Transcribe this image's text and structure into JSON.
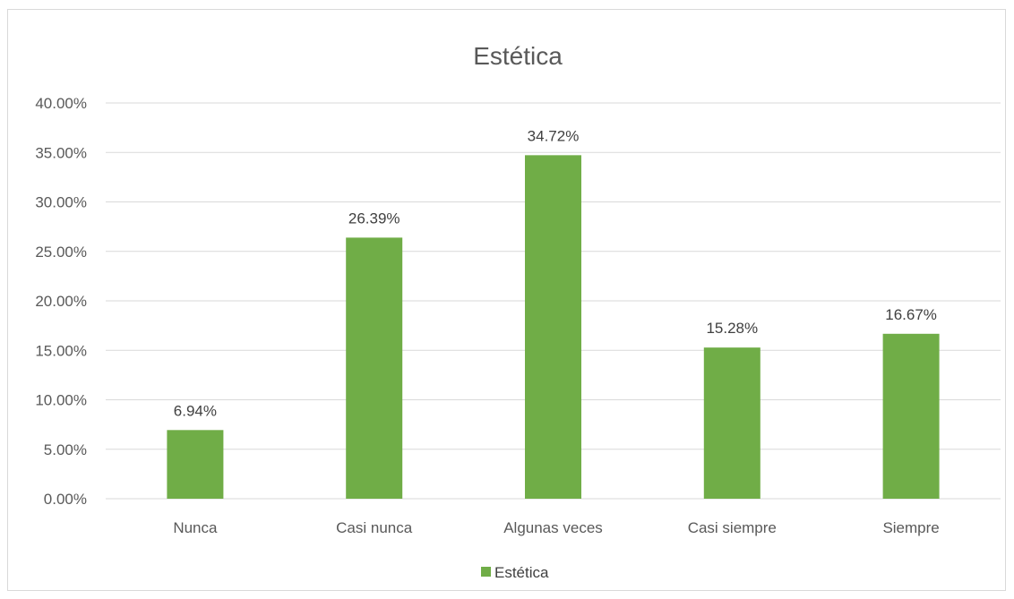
{
  "chart_data": {
    "type": "bar",
    "title": "Estética",
    "categories": [
      "Nunca",
      "Casi nunca",
      "Algunas veces",
      "Casi siempre",
      "Siempre"
    ],
    "series": [
      {
        "name": "Estética",
        "values": [
          6.94,
          26.39,
          34.72,
          15.28,
          16.67
        ],
        "color": "#70ad47"
      }
    ],
    "data_labels": [
      "6.94%",
      "26.39%",
      "34.72%",
      "15.28%",
      "16.67%"
    ],
    "yticks": [
      "0.00%",
      "5.00%",
      "10.00%",
      "15.00%",
      "20.00%",
      "25.00%",
      "30.00%",
      "35.00%",
      "40.00%"
    ],
    "ylim": [
      0,
      40
    ],
    "grid": true,
    "legend_position": "bottom",
    "gridline_color": "#d9d9d9"
  }
}
